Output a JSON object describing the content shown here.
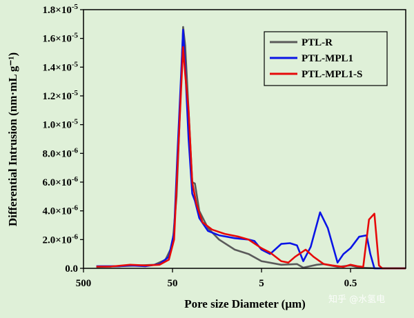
{
  "watermark": "知乎 @水氢电",
  "chart_data": {
    "type": "line",
    "xlabel": "Pore size Diameter (μm)",
    "ylabel": "Differential Intrusion (nm·mL g⁻¹)",
    "x_scale": "log-reversed",
    "xlim": [
      500,
      0.12
    ],
    "ylim": [
      0,
      1.8e-05
    ],
    "x_ticks": [
      {
        "value": 500,
        "label": "500"
      },
      {
        "value": 50,
        "label": "50"
      },
      {
        "value": 5,
        "label": "5"
      },
      {
        "value": 0.5,
        "label": "0.5"
      }
    ],
    "y_ticks": [
      {
        "value": 0,
        "base": "0.0",
        "exp": ""
      },
      {
        "value": 2e-06,
        "base": "2.0×10",
        "exp": "-6"
      },
      {
        "value": 4e-06,
        "base": "4.0×10",
        "exp": "-6"
      },
      {
        "value": 6e-06,
        "base": "6.0×10",
        "exp": "-6"
      },
      {
        "value": 8e-06,
        "base": "8.0×10",
        "exp": "-6"
      },
      {
        "value": 1e-05,
        "base": "1.0×10",
        "exp": "-5"
      },
      {
        "value": 1.2e-05,
        "base": "1.2×10",
        "exp": "-5"
      },
      {
        "value": 1.4e-05,
        "base": "1.4×10",
        "exp": "-5"
      },
      {
        "value": 1.6e-05,
        "base": "1.6×10",
        "exp": "-5"
      },
      {
        "value": 1.8e-05,
        "base": "1.8×10",
        "exp": "-5"
      }
    ],
    "legend_position": "top-right",
    "series": [
      {
        "name": "PTL-R",
        "color": "#5a5a5a",
        "points": [
          [
            358,
            1e-07
          ],
          [
            200,
            1.5e-07
          ],
          [
            120,
            2e-07
          ],
          [
            80,
            2.5e-07
          ],
          [
            60,
            6e-07
          ],
          [
            50,
            1.6e-06
          ],
          [
            45,
            5e-06
          ],
          [
            40,
            1.3e-05
          ],
          [
            38,
            1.68e-05
          ],
          [
            36,
            1.55e-05
          ],
          [
            33,
            1.1e-05
          ],
          [
            30,
            6e-06
          ],
          [
            28,
            5.9e-06
          ],
          [
            25,
            4e-06
          ],
          [
            20,
            2.8e-06
          ],
          [
            15,
            2e-06
          ],
          [
            10,
            1.3e-06
          ],
          [
            7,
            1e-06
          ],
          [
            5,
            5e-07
          ],
          [
            3,
            2.5e-07
          ],
          [
            2,
            3e-07
          ],
          [
            1.7,
            5e-08
          ],
          [
            1.2,
            2.5e-07
          ],
          [
            1,
            3e-07
          ],
          [
            0.7,
            1e-07
          ],
          [
            0.5,
            2e-07
          ],
          [
            0.4,
            5e-08
          ],
          [
            0.3,
            2e-08
          ],
          [
            0.25,
            0
          ],
          [
            0.12,
            0
          ]
        ]
      },
      {
        "name": "PTL-MPL1",
        "color": "#0a14e6",
        "points": [
          [
            358,
            1.5e-07
          ],
          [
            200,
            1.5e-07
          ],
          [
            150,
            2e-07
          ],
          [
            100,
            1.5e-07
          ],
          [
            70,
            3e-07
          ],
          [
            55,
            8e-07
          ],
          [
            48,
            2.5e-06
          ],
          [
            44,
            8e-06
          ],
          [
            40,
            1.35e-05
          ],
          [
            38,
            1.66e-05
          ],
          [
            36,
            1.4e-05
          ],
          [
            33,
            9e-06
          ],
          [
            30,
            5.2e-06
          ],
          [
            28,
            4.7e-06
          ],
          [
            25,
            3.5e-06
          ],
          [
            20,
            2.6e-06
          ],
          [
            15,
            2.3e-06
          ],
          [
            10,
            2.1e-06
          ],
          [
            7,
            2e-06
          ],
          [
            6,
            1.9e-06
          ],
          [
            5,
            1.3e-06
          ],
          [
            4,
            1e-06
          ],
          [
            3,
            1.7e-06
          ],
          [
            2.4,
            1.75e-06
          ],
          [
            2,
            1.6e-06
          ],
          [
            1.7,
            5e-07
          ],
          [
            1.4,
            1.5e-06
          ],
          [
            1.1,
            3.9e-06
          ],
          [
            0.9,
            2.8e-06
          ],
          [
            0.7,
            4e-07
          ],
          [
            0.6,
            1e-06
          ],
          [
            0.5,
            1.4e-06
          ],
          [
            0.4,
            2.2e-06
          ],
          [
            0.33,
            2.3e-06
          ],
          [
            0.3,
            1e-06
          ],
          [
            0.27,
            0
          ],
          [
            0.12,
            0
          ]
        ]
      },
      {
        "name": "PTL-MPL1-S",
        "color": "#e60a0a",
        "points": [
          [
            358,
            1.2e-07
          ],
          [
            250,
            1.2e-07
          ],
          [
            150,
            2.5e-07
          ],
          [
            100,
            2e-07
          ],
          [
            70,
            2.5e-07
          ],
          [
            55,
            6e-07
          ],
          [
            48,
            2e-06
          ],
          [
            44,
            7e-06
          ],
          [
            40,
            1.25e-05
          ],
          [
            38,
            1.54e-05
          ],
          [
            36,
            1.35e-05
          ],
          [
            33,
            1.1e-05
          ],
          [
            30,
            6e-06
          ],
          [
            27,
            4.5e-06
          ],
          [
            23,
            3.2e-06
          ],
          [
            18,
            2.7e-06
          ],
          [
            13,
            2.4e-06
          ],
          [
            9,
            2.2e-06
          ],
          [
            7,
            2e-06
          ],
          [
            5,
            1.4e-06
          ],
          [
            4,
            1.1e-06
          ],
          [
            3,
            5e-07
          ],
          [
            2.5,
            4e-07
          ],
          [
            2.1,
            8e-07
          ],
          [
            1.6,
            1.3e-06
          ],
          [
            1.3,
            8e-07
          ],
          [
            1,
            3e-07
          ],
          [
            0.8,
            2e-07
          ],
          [
            0.6,
            1e-07
          ],
          [
            0.5,
            2.5e-07
          ],
          [
            0.42,
            1.5e-07
          ],
          [
            0.36,
            1e-07
          ],
          [
            0.31,
            3.4e-06
          ],
          [
            0.27,
            3.8e-06
          ],
          [
            0.24,
            2e-07
          ],
          [
            0.22,
            0
          ],
          [
            0.12,
            0
          ]
        ]
      }
    ]
  }
}
